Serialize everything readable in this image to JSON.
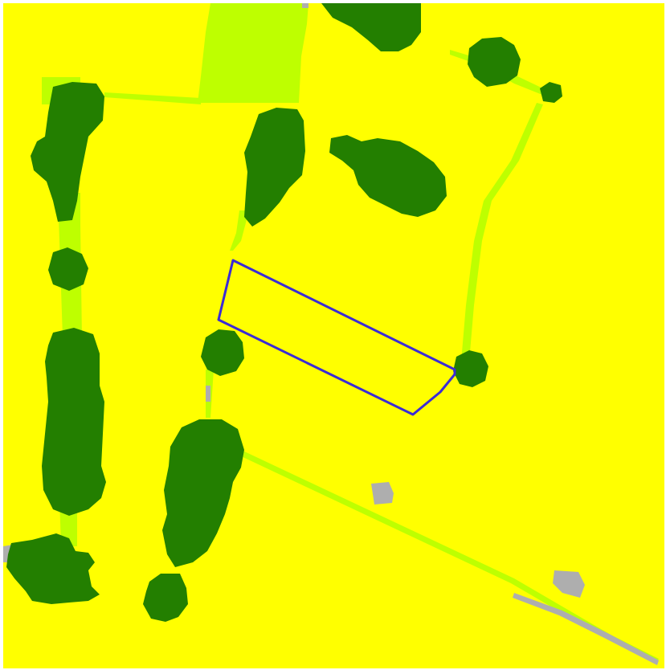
{
  "map": {
    "legend_classes": [
      {
        "key": "crop",
        "color": "#FFFF00"
      },
      {
        "key": "tree_cover",
        "color": "#237F00"
      },
      {
        "key": "grassland",
        "color": "#BEFF00"
      },
      {
        "key": "built_up",
        "color": "#AEAEAE"
      },
      {
        "key": "field_outline",
        "color": "#3B2BD6"
      }
    ],
    "labels": []
  }
}
